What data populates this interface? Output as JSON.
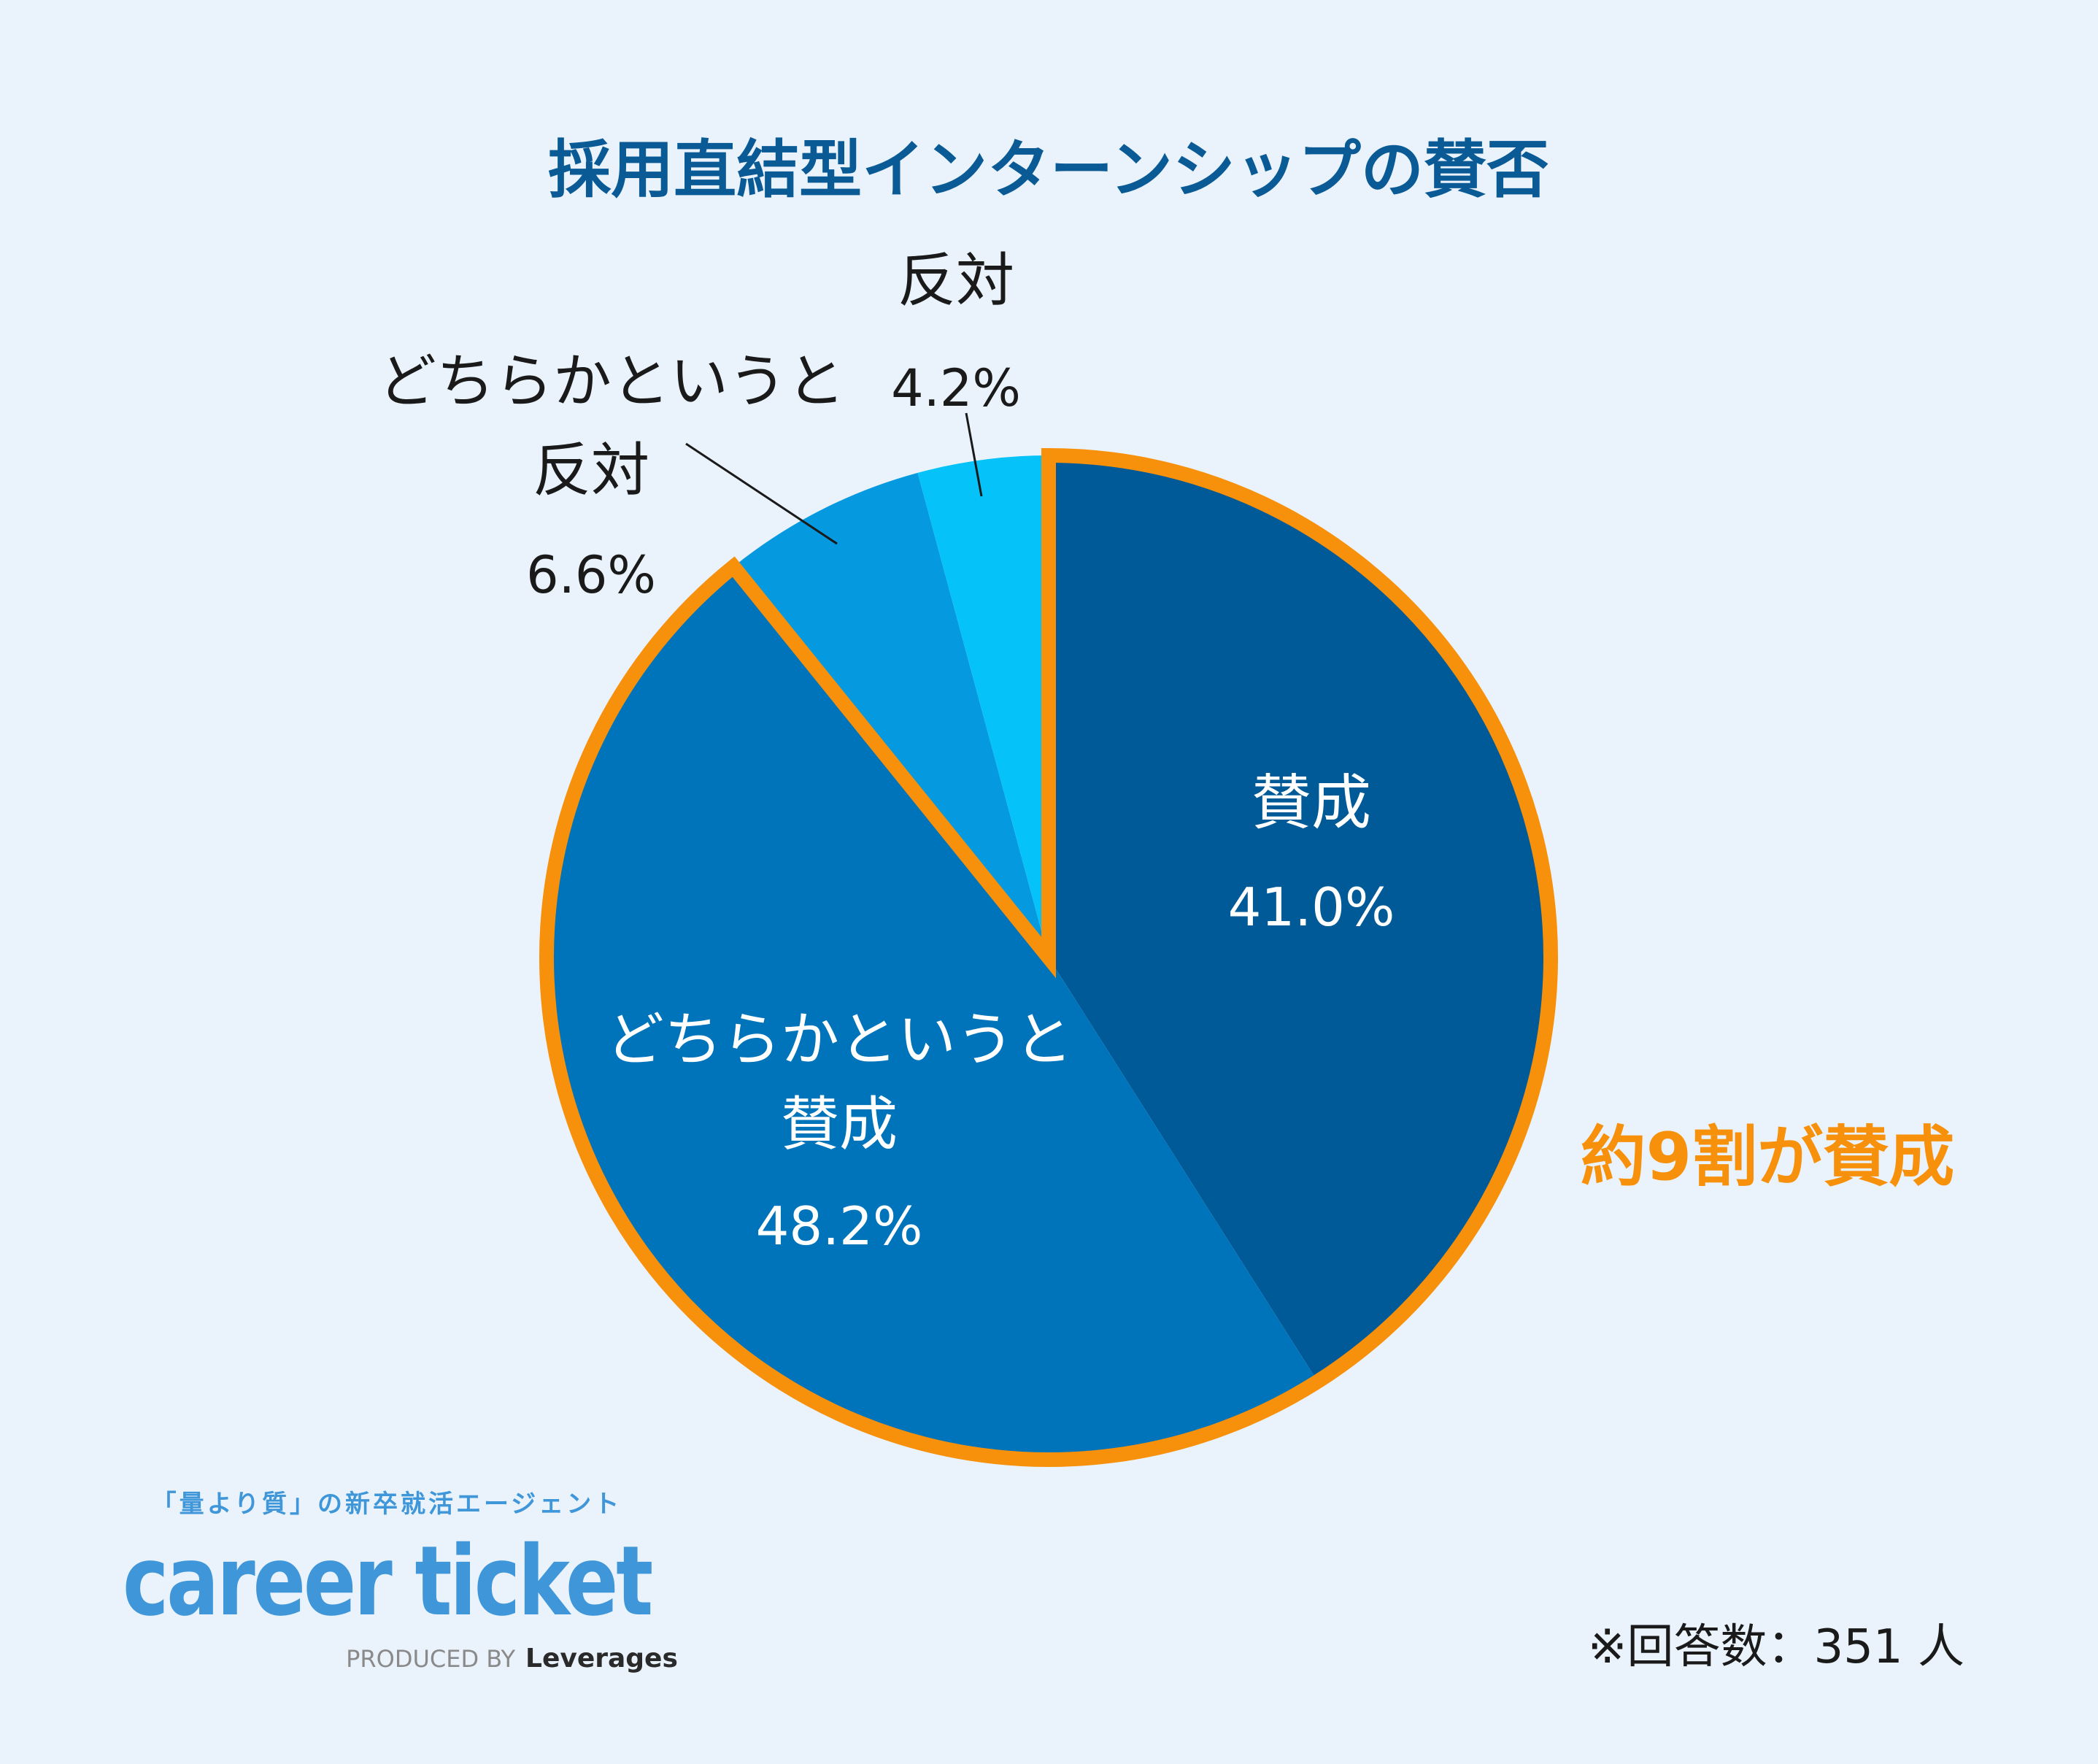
{
  "chart_data": {
    "type": "pie",
    "title": "採用直結型インターンシップの賛否",
    "slices": [
      {
        "label_lines": [
          "賛成"
        ],
        "value": 41.0,
        "value_label": "41.0%",
        "color": "#005a98"
      },
      {
        "label_lines": [
          "どちらかというと",
          "賛成"
        ],
        "value": 48.2,
        "value_label": "48.2%",
        "color": "#0074bb"
      },
      {
        "label_lines": [
          "どちらかというと",
          "反対"
        ],
        "value": 6.6,
        "value_label": "6.6%",
        "color": "#0599e0"
      },
      {
        "label_lines": [
          "反対"
        ],
        "value": 4.2,
        "value_label": "4.2%",
        "color": "#05c3f8"
      }
    ],
    "highlight": {
      "text": "約9割が賛成",
      "color": "#f7900b"
    },
    "note": "※回答数：351 人"
  },
  "logo": {
    "tagline": "「量より質」の新卒就活エージェント",
    "wordmark": "career ticket",
    "produced_by": "PRODUCED BY",
    "company": "Leverages",
    "color": "#3f96d9"
  }
}
